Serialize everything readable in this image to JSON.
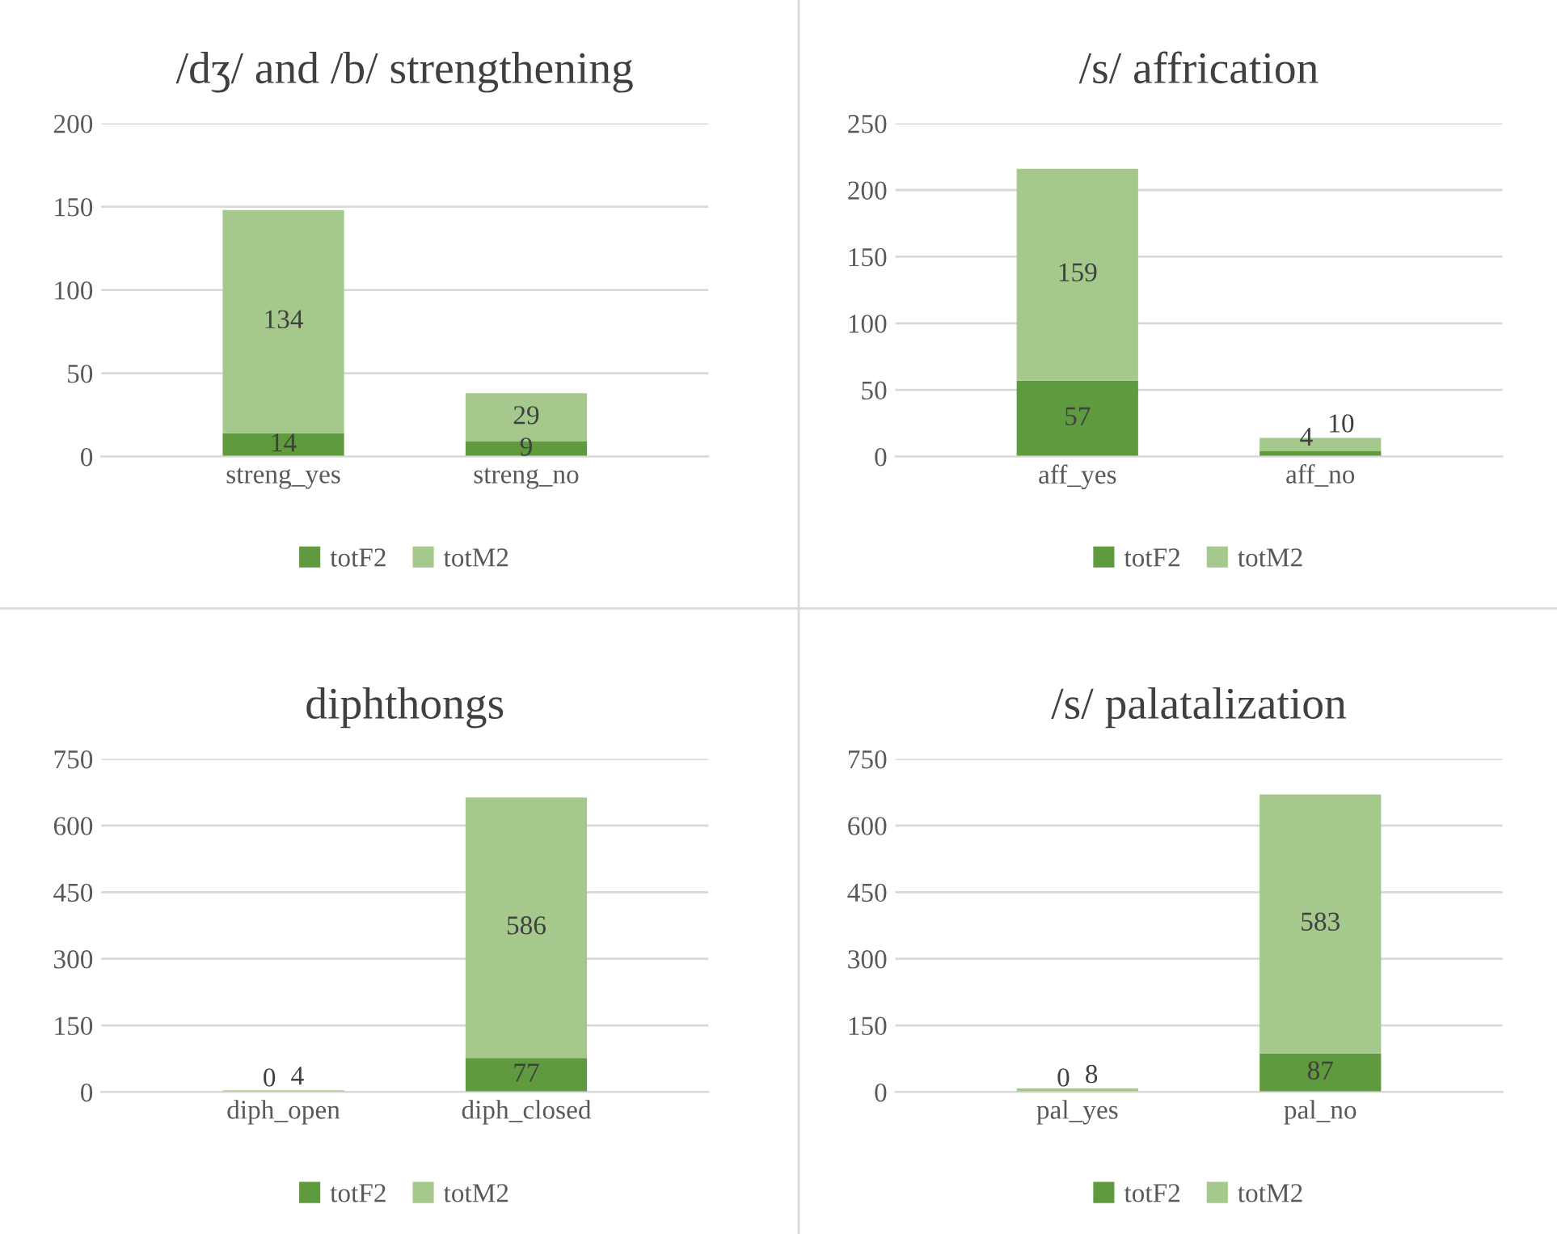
{
  "chart_data": [
    {
      "type": "bar",
      "stacked": true,
      "title": "/dʒ/ and /b/ strengthening",
      "categories": [
        "streng_yes",
        "streng_no"
      ],
      "series": [
        {
          "name": "totF2",
          "color": "#5f9a3e",
          "values": [
            14,
            9
          ]
        },
        {
          "name": "totM2",
          "color": "#a5c98c",
          "values": [
            134,
            29
          ]
        }
      ],
      "ylim": [
        0,
        200
      ],
      "yticks": [
        0,
        50,
        100,
        150,
        200
      ],
      "grid": "y",
      "legend": "bottom",
      "data_labels": true
    },
    {
      "type": "bar",
      "stacked": true,
      "title": "/s/ affrication",
      "categories": [
        "aff_yes",
        "aff_no"
      ],
      "series": [
        {
          "name": "totF2",
          "color": "#5f9a3e",
          "values": [
            57,
            4
          ]
        },
        {
          "name": "totM2",
          "color": "#a5c98c",
          "values": [
            159,
            10
          ]
        }
      ],
      "ylim": [
        0,
        250
      ],
      "yticks": [
        0,
        50,
        100,
        150,
        200,
        250
      ],
      "grid": "y",
      "legend": "bottom",
      "data_labels": true
    },
    {
      "type": "bar",
      "stacked": true,
      "title": "diphthongs",
      "categories": [
        "diph_open",
        "diph_closed"
      ],
      "series": [
        {
          "name": "totF2",
          "color": "#5f9a3e",
          "values": [
            0,
            77
          ]
        },
        {
          "name": "totM2",
          "color": "#a5c98c",
          "values": [
            4,
            586
          ]
        }
      ],
      "ylim": [
        0,
        750
      ],
      "yticks": [
        0,
        150,
        300,
        450,
        600,
        750
      ],
      "grid": "y",
      "legend": "bottom",
      "data_labels": true
    },
    {
      "type": "bar",
      "stacked": true,
      "title": "/s/ palatalization",
      "categories": [
        "pal_yes",
        "pal_no"
      ],
      "series": [
        {
          "name": "totF2",
          "color": "#5f9a3e",
          "values": [
            0,
            87
          ]
        },
        {
          "name": "totM2",
          "color": "#a5c98c",
          "values": [
            8,
            583
          ]
        }
      ],
      "ylim": [
        0,
        750
      ],
      "yticks": [
        0,
        150,
        300,
        450,
        600,
        750
      ],
      "grid": "y",
      "legend": "bottom",
      "data_labels": true
    }
  ]
}
